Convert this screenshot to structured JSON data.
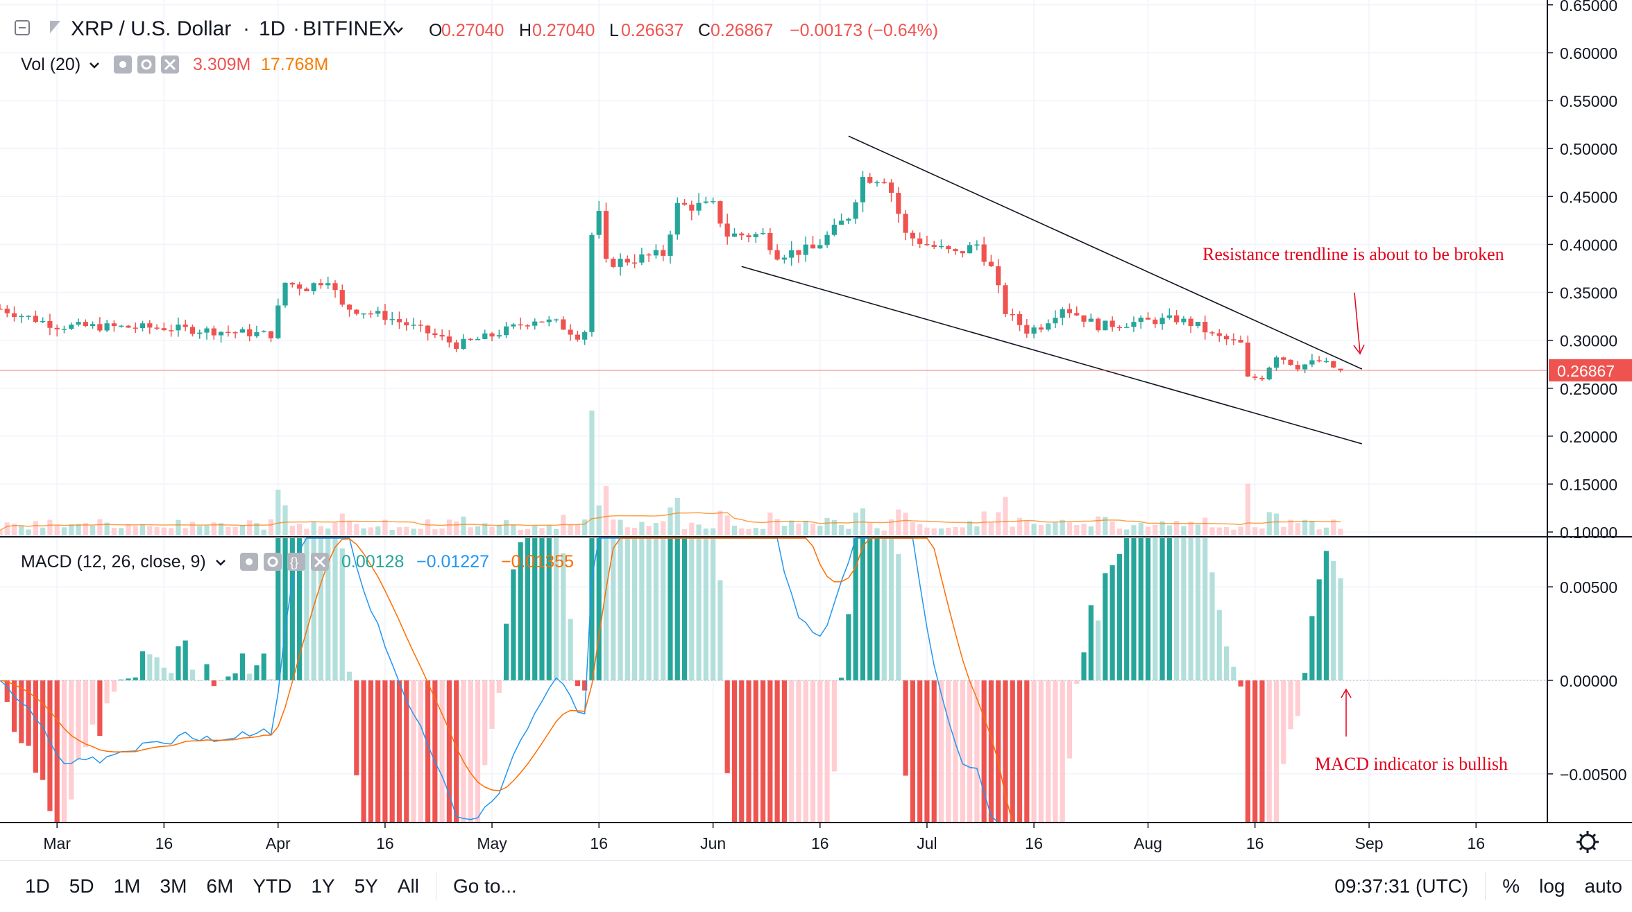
{
  "header": {
    "symbol": "XRP / U.S. Dollar",
    "interval": "1D",
    "exchange": "BITFINEX",
    "o_label": "O",
    "o_value": "0.27040",
    "h_label": "H",
    "h_value": "0.27040",
    "l_label": "L",
    "l_value": "0.26637",
    "c_label": "C",
    "c_value": "0.26867",
    "change": "−0.00173 (−0.64%)",
    "vol_label": "Vol (20)",
    "vol_value": "3.309M",
    "vol_ma_value": "17.768M",
    "macd_label": "MACD (12, 26, close, 9)",
    "macd_hist": "0.00128",
    "macd_line": "−0.01227",
    "macd_signal": "−0.01355"
  },
  "colors": {
    "up": "#26a69a",
    "down": "#ef5350",
    "up_light": "#b2dfdb",
    "down_light": "#ffcdd2",
    "macd_line": "#2196f3",
    "signal_line": "#ff6d00",
    "vol_ma": "#f57c00",
    "annotation": "#e4001b",
    "text": "#131722",
    "axis_text": "#131722"
  },
  "bottom_bar": {
    "ranges": [
      "1D",
      "5D",
      "1M",
      "3M",
      "6M",
      "YTD",
      "1Y",
      "5Y",
      "All"
    ],
    "goto": "Go to...",
    "time": "09:37:31 (UTC)",
    "percent": "%",
    "log": "log",
    "auto": "auto"
  },
  "chart_data": [
    {
      "type": "candlestick",
      "title": "XRP / U.S. Dollar",
      "ylim": [
        0.095,
        0.655
      ],
      "y_ticks": [
        "0.65000",
        "0.60000",
        "0.55000",
        "0.50000",
        "0.45000",
        "0.40000",
        "0.35000",
        "0.30000",
        "0.25000",
        "0.20000",
        "0.15000",
        "0.10000"
      ],
      "y_tick_values": [
        0.65,
        0.6,
        0.55,
        0.5,
        0.45,
        0.4,
        0.35,
        0.3,
        0.25,
        0.2,
        0.15,
        0.1
      ],
      "x_ticks": [
        {
          "label": "Mar",
          "date": "2019-03-01"
        },
        {
          "label": "16",
          "date": "2019-03-16"
        },
        {
          "label": "Apr",
          "date": "2019-04-01"
        },
        {
          "label": "16",
          "date": "2019-04-16"
        },
        {
          "label": "May",
          "date": "2019-05-01"
        },
        {
          "label": "16",
          "date": "2019-05-16"
        },
        {
          "label": "Jun",
          "date": "2019-06-01"
        },
        {
          "label": "16",
          "date": "2019-06-16"
        },
        {
          "label": "Jul",
          "date": "2019-07-01"
        },
        {
          "label": "16",
          "date": "2019-07-16"
        },
        {
          "label": "Aug",
          "date": "2019-08-01"
        },
        {
          "label": "16",
          "date": "2019-08-16"
        },
        {
          "label": "Sep",
          "date": "2019-09-01"
        },
        {
          "label": "16",
          "date": "2019-09-16"
        }
      ],
      "x_range": [
        "2019-02-21",
        "2019-09-26"
      ],
      "last_price": {
        "label": "0.26867",
        "value": 0.26867
      },
      "close_anchors": [
        [
          "2019-02-21",
          0.333
        ],
        [
          "2019-03-01",
          0.315
        ],
        [
          "2019-03-16",
          0.313
        ],
        [
          "2019-03-31",
          0.306
        ],
        [
          "2019-04-02",
          0.36
        ],
        [
          "2019-04-05",
          0.355
        ],
        [
          "2019-04-08",
          0.365
        ],
        [
          "2019-04-10",
          0.335
        ],
        [
          "2019-04-16",
          0.325
        ],
        [
          "2019-04-23",
          0.305
        ],
        [
          "2019-04-26",
          0.295
        ],
        [
          "2019-05-01",
          0.305
        ],
        [
          "2019-05-07",
          0.322
        ],
        [
          "2019-05-10",
          0.318
        ],
        [
          "2019-05-13",
          0.305
        ],
        [
          "2019-05-14",
          0.31
        ],
        [
          "2019-05-15",
          0.41
        ],
        [
          "2019-05-16",
          0.43
        ],
        [
          "2019-05-17",
          0.38
        ],
        [
          "2019-05-21",
          0.385
        ],
        [
          "2019-05-25",
          0.39
        ],
        [
          "2019-05-27",
          0.44
        ],
        [
          "2019-05-30",
          0.44
        ],
        [
          "2019-06-01",
          0.44
        ],
        [
          "2019-06-03",
          0.41
        ],
        [
          "2019-06-08",
          0.41
        ],
        [
          "2019-06-10",
          0.39
        ],
        [
          "2019-06-15",
          0.395
        ],
        [
          "2019-06-18",
          0.415
        ],
        [
          "2019-06-20",
          0.43
        ],
        [
          "2019-06-22",
          0.47
        ],
        [
          "2019-06-25",
          0.47
        ],
        [
          "2019-06-26",
          0.455
        ],
        [
          "2019-06-28",
          0.41
        ],
        [
          "2019-07-01",
          0.4
        ],
        [
          "2019-07-05",
          0.39
        ],
        [
          "2019-07-08",
          0.4
        ],
        [
          "2019-07-10",
          0.375
        ],
        [
          "2019-07-12",
          0.33
        ],
        [
          "2019-07-15",
          0.31
        ],
        [
          "2019-07-17",
          0.315
        ],
        [
          "2019-07-20",
          0.335
        ],
        [
          "2019-07-25",
          0.315
        ],
        [
          "2019-08-01",
          0.32
        ],
        [
          "2019-08-05",
          0.322
        ],
        [
          "2019-08-08",
          0.315
        ],
        [
          "2019-08-10",
          0.305
        ],
        [
          "2019-08-14",
          0.296
        ],
        [
          "2019-08-15",
          0.26
        ],
        [
          "2019-08-17",
          0.262
        ],
        [
          "2019-08-19",
          0.285
        ],
        [
          "2019-08-22",
          0.273
        ],
        [
          "2019-08-25",
          0.278
        ],
        [
          "2019-08-28",
          0.26867
        ]
      ],
      "annotations": [
        {
          "text": "Resistance trendline is about to be broken"
        }
      ],
      "trendlines": [
        {
          "name": "resistance",
          "from": [
            "2019-06-20",
            0.513
          ],
          "to": [
            "2019-08-31",
            0.27
          ]
        },
        {
          "name": "support",
          "from": [
            "2019-06-05",
            0.377
          ],
          "to": [
            "2019-08-31",
            0.192
          ]
        }
      ]
    },
    {
      "type": "bar",
      "title": "Vol (20)",
      "values_label": [
        "3.309M",
        "17.768M"
      ]
    },
    {
      "type": "histogram",
      "title": "MACD (12, 26, close, 9)",
      "ylim": [
        -0.0076,
        0.0076
      ],
      "y_ticks": [
        "0.00500",
        "0.00000",
        "−0.00500"
      ],
      "y_tick_values": [
        0.005,
        0,
        -0.005
      ],
      "annotations": [
        {
          "text": "MACD indicator is bullish"
        }
      ]
    }
  ]
}
